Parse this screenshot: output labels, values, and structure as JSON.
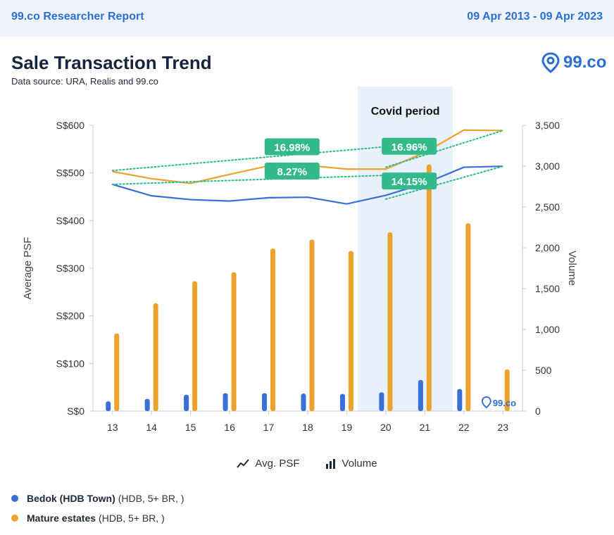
{
  "header": {
    "report_name": "99.co Researcher Report",
    "date_range": "09 Apr 2013 - 09 Apr 2023"
  },
  "title": "Sale Transaction Trend",
  "data_source": "Data source: URA, Realis and 99.co",
  "logo_text": "99.co",
  "watermark_text": "99.co",
  "colors": {
    "bedok": "#3a6fd6",
    "mature": "#eba32d",
    "trend": "#2ebc8e",
    "badge": "#34b98a",
    "covid": "#e8f0fb",
    "brand": "#2a6fd1"
  },
  "covid_label": "Covid period",
  "legend": {
    "line_label": "Avg. PSF",
    "bar_label": "Volume"
  },
  "series_legend": [
    {
      "name": "Bedok (HDB Town)",
      "detail": "(HDB, 5+ BR, )",
      "color": "#3a6fd6"
    },
    {
      "name": "Mature estates",
      "detail": "(HDB, 5+ BR, )",
      "color": "#eba32d"
    }
  ],
  "chart_data": {
    "type": "bar+line",
    "categories": [
      "13",
      "14",
      "15",
      "16",
      "17",
      "18",
      "19",
      "20",
      "21",
      "22",
      "23"
    ],
    "ylabel_left": "Average PSF",
    "ylabel_right": "Volume",
    "left_axis": {
      "min": 0,
      "max": 600,
      "ticks": [
        0,
        100,
        200,
        300,
        400,
        500,
        600
      ],
      "tick_labels": [
        "S$0",
        "S$100",
        "S$200",
        "S$300",
        "S$400",
        "S$500",
        "S$600"
      ]
    },
    "right_axis": {
      "min": 0,
      "max": 3500,
      "ticks": [
        0,
        500,
        1000,
        1500,
        2000,
        2500,
        3000,
        3500
      ],
      "tick_labels": [
        "0",
        "500",
        "1,000",
        "1,500",
        "2,000",
        "2,500",
        "3,000",
        "3,500"
      ]
    },
    "covid_range": [
      "20",
      "21"
    ],
    "bar_series": [
      {
        "name": "Bedok (HDB Town)",
        "values": [
          120,
          150,
          200,
          220,
          220,
          215,
          210,
          230,
          380,
          270,
          null
        ]
      },
      {
        "name": "Mature estates",
        "values": [
          950,
          1320,
          1590,
          1700,
          1990,
          2100,
          1960,
          2190,
          3020,
          2300,
          510
        ]
      }
    ],
    "line_series": [
      {
        "name": "Bedok (HDB Town)",
        "values": [
          476,
          452,
          444,
          441,
          448,
          449,
          435,
          453,
          478,
          512,
          514
        ]
      },
      {
        "name": "Mature estates",
        "values": [
          503,
          488,
          478,
          497,
          515,
          516,
          508,
          508,
          543,
          590,
          589
        ]
      }
    ],
    "trendlines": [
      {
        "series": "Bedok (HDB Town)",
        "from_index": 0,
        "to_index": 7,
        "from": 476,
        "to": 495
      },
      {
        "series": "Mature estates",
        "from_index": 0,
        "to_index": 7,
        "from": 505,
        "to": 555
      },
      {
        "series": "Bedok (HDB Town)",
        "from_index": 7,
        "to_index": 10,
        "from": 445,
        "to": 514
      },
      {
        "series": "Mature estates",
        "from_index": 7,
        "to_index": 10,
        "from": 512,
        "to": 589
      }
    ],
    "annotations": [
      {
        "text": "16.98%",
        "at_index": 4.6,
        "at_value": 555
      },
      {
        "text": "8.27%",
        "at_index": 4.6,
        "at_value": 504
      },
      {
        "text": "16.96%",
        "at_index": 7.6,
        "at_value": 556
      },
      {
        "text": "14.15%",
        "at_index": 7.6,
        "at_value": 483
      }
    ]
  }
}
